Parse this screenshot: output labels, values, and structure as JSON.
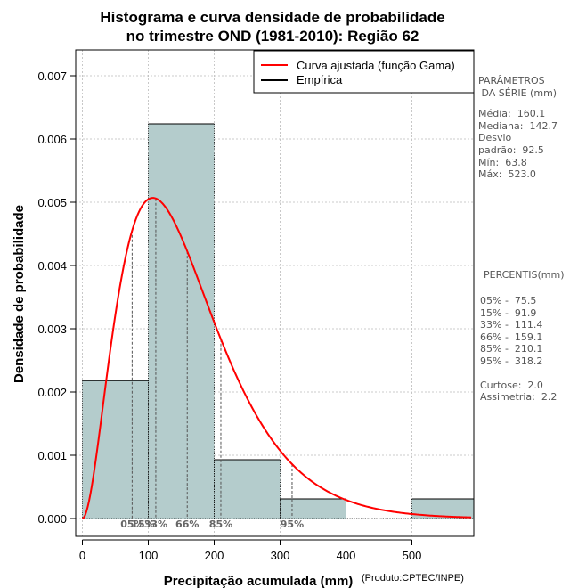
{
  "chart_data": {
    "type": "histogram",
    "title": "Histograma e curva densidade de probabilidade",
    "subtitle": "no trimestre OND (1981-2010): Região 62",
    "xlabel": "Precipitação acumulada (mm)",
    "ylabel": "Densidade de probabilidade",
    "credit": "(Produto:CPTEC/INPE)",
    "xlim": [
      0,
      590
    ],
    "ylim": [
      0,
      0.0073
    ],
    "x_ticks": [
      0,
      100,
      200,
      300,
      400,
      500
    ],
    "x_tick_labels": [
      "0",
      "100",
      "200",
      "300",
      "400",
      "500"
    ],
    "y_ticks": [
      0,
      0.001,
      0.002,
      0.003,
      0.004,
      0.005,
      0.006,
      0.007
    ],
    "y_tick_labels": [
      "0.000",
      "0.001",
      "0.002",
      "0.003",
      "0.004",
      "0.005",
      "0.006",
      "0.007"
    ],
    "grid": true,
    "bins": [
      {
        "start": 0,
        "end": 100,
        "density": 0.00218
      },
      {
        "start": 100,
        "end": 200,
        "density": 0.00624
      },
      {
        "start": 200,
        "end": 300,
        "density": 0.00093
      },
      {
        "start": 300,
        "end": 400,
        "density": 0.00031
      },
      {
        "start": 500,
        "end": 600,
        "density": 0.00031
      }
    ],
    "gamma_fit": {
      "shape": 3.0,
      "scale": 53.4
    },
    "percentile_lines": [
      {
        "label": "05%",
        "value": 75.5
      },
      {
        "label": "15%",
        "value": 91.9
      },
      {
        "label": "33%",
        "value": 111.4
      },
      {
        "label": "66%",
        "value": 159.1
      },
      {
        "label": "85%",
        "value": 210.1
      },
      {
        "label": "95%",
        "value": 318.2
      }
    ],
    "legend": {
      "position": "top-right",
      "entries": [
        {
          "label": "Curva ajustada (função Gama)",
          "color": "#ff0000"
        },
        {
          "label": "Empírica",
          "color": "#000000"
        }
      ]
    },
    "colors": {
      "bars": "#b4cccc",
      "curve": "#ff0000",
      "grid": "#bbbbbb"
    }
  },
  "side_panel": {
    "params_title_1": "PARÂMETROS",
    "params_title_2": " DA SÉRIE (mm)",
    "params": [
      "Média:  160.1",
      "Mediana:  142.7",
      "Desvio",
      "padrão:  92.5",
      "Mín:  63.8",
      "Máx:  523.0"
    ],
    "percentis_title": "PERCENTIS(mm)",
    "percentis": [
      "05% -  75.5",
      "15% -  91.9",
      "33% -  111.4",
      "66% -  159.1",
      "85% -  210.1",
      "95% -  318.2"
    ],
    "stats": [
      "Curtose:  2.0",
      "Assimetria:  2.2"
    ]
  }
}
